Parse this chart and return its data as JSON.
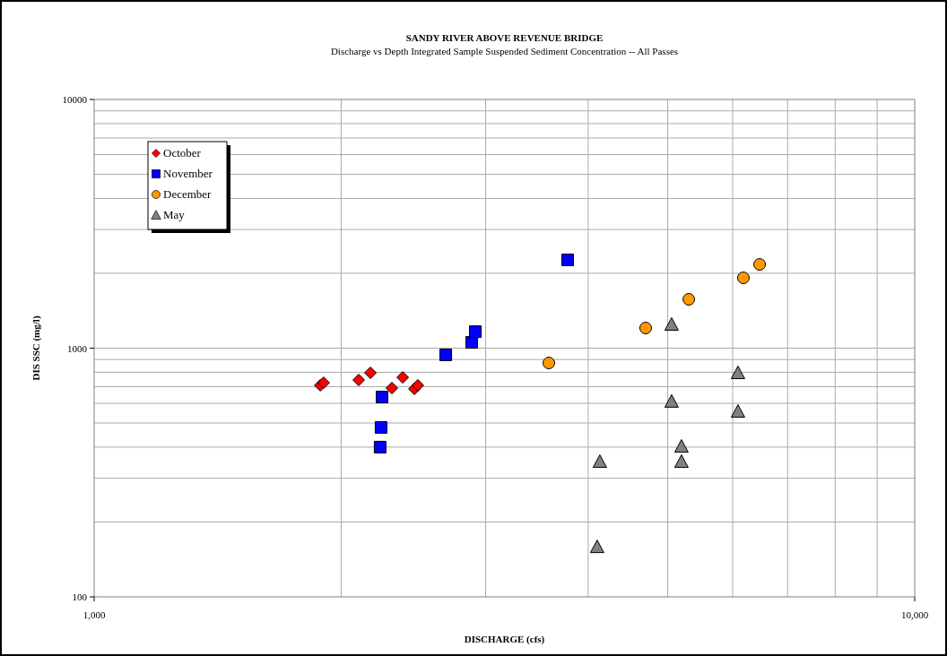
{
  "chart_data": {
    "type": "scatter",
    "title": "SANDY RIVER ABOVE REVENUE BRIDGE",
    "subtitle": "Discharge vs Depth Integrated Sample Suspended Sediment Concentration -- All Passes",
    "xlabel": "DISCHARGE (cfs)",
    "ylabel": "DIS SSC (mg/l)",
    "log": "xy",
    "grid": true,
    "legend": "top left",
    "xlim": [
      1000,
      10000
    ],
    "xticks": [
      {
        "value": 1000,
        "label": "1,000"
      },
      {
        "value": 10000,
        "label": "10,000"
      }
    ],
    "ylim": [
      100,
      10000
    ],
    "yticks": [
      100,
      1000,
      10000
    ],
    "series": [
      {
        "name": "October",
        "color": "#ff0000",
        "marker": "diamond",
        "x": [
          1886,
          1904,
          2101,
          2171,
          2306,
          2377,
          2456,
          2480
        ],
        "values": [
          709,
          726,
          745,
          796,
          691,
          763,
          686,
          709
        ]
      },
      {
        "name": "November",
        "color": "#0000ff",
        "marker": "square",
        "x": [
          2243,
          2237,
          2231,
          2682,
          2885,
          2914,
          3776
        ],
        "values": [
          636,
          480,
          400,
          940,
          1055,
          1165,
          2265
        ]
      },
      {
        "name": "December",
        "color": "#ff9900",
        "marker": "circle",
        "x": [
          3582,
          4700,
          5305,
          6183,
          6471
        ],
        "values": [
          872,
          1205,
          1572,
          1918,
          2172
        ]
      },
      {
        "name": "May",
        "color": "#808080",
        "marker": "triangle",
        "x": [
          4133,
          4102,
          5055,
          5055,
          5197,
          5197,
          6090,
          6090
        ],
        "values": [
          350,
          159,
          1246,
          611,
          403,
          350,
          796,
          557
        ]
      }
    ]
  }
}
